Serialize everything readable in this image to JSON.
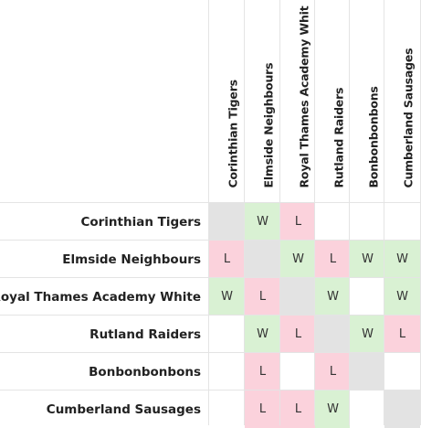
{
  "teams": [
    "Corinthian Tigers",
    "Elmside Neighbours",
    "Royal Thames Academy White",
    "Rutland Raiders",
    "Bonbonbonbons",
    "Cumberland Sausages"
  ],
  "column_headers": [
    "Corinthian Tigers",
    "Elmside Neighbours",
    "Royal Thames Academy Whit",
    "Rutland Raiders",
    "Bonbonbonbons",
    "Cumberland Sausages"
  ],
  "results": [
    [
      "-",
      "W",
      "L",
      "",
      "",
      ""
    ],
    [
      "L",
      "-",
      "W",
      "L",
      "W",
      "W"
    ],
    [
      "W",
      "L",
      "-",
      "W",
      "",
      "W"
    ],
    [
      "",
      "W",
      "L",
      "-",
      "W",
      "L"
    ],
    [
      "",
      "L",
      "",
      "L",
      "-",
      ""
    ],
    [
      "",
      "L",
      "L",
      "W",
      "",
      "-"
    ]
  ],
  "colors": {
    "win": "#d9f1d3",
    "loss": "#fbd2dc",
    "self": "#e3e3e3",
    "empty": "#ffffff",
    "grid": "#e4e4e4"
  }
}
